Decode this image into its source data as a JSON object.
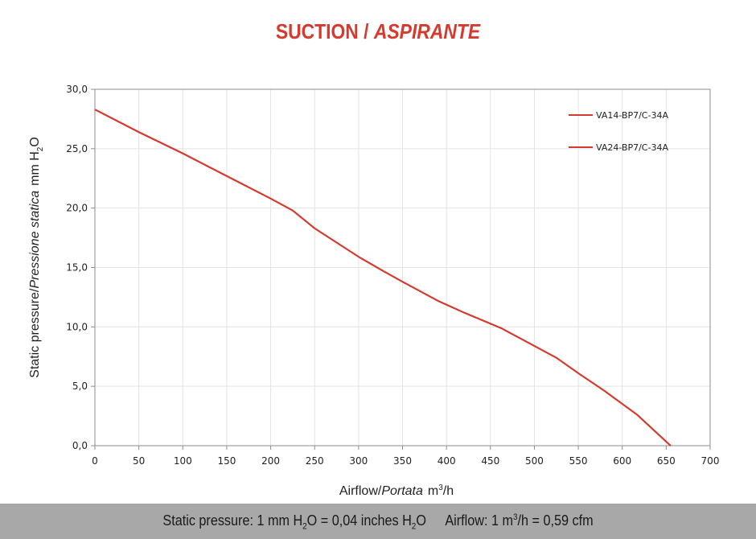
{
  "chart_data": {
    "type": "line",
    "title_part1": "SUCTION / ",
    "title_part2": "ASPIRANTE",
    "xlabel": {
      "part1": "Airflow/",
      "part2": "Portata",
      "unit": "m",
      "unit_sup": "3",
      "unit_end": "/h"
    },
    "ylabel": {
      "part1": "Static pressure/",
      "part2": "Pressione statica",
      "unit": "mm  H",
      "unit_sub": "2",
      "unit_end": "O"
    },
    "xlim": [
      0,
      700
    ],
    "ylim": [
      0,
      30
    ],
    "x_ticks": [
      "0",
      "50",
      "100",
      "150",
      "200",
      "250",
      "300",
      "350",
      "400",
      "450",
      "500",
      "550",
      "600",
      "650",
      "700"
    ],
    "y_ticks": [
      "0,0",
      "5,0",
      "10,0",
      "15,0",
      "20,0",
      "25,0",
      "30,0"
    ],
    "grid": true,
    "legend_position": "top-right",
    "series": [
      {
        "name": "VA14-BP7/C-34A",
        "color": "#d63a2e",
        "x": [
          0,
          50,
          100,
          150,
          200,
          225,
          250,
          300,
          328,
          350,
          390,
          420,
          462,
          500,
          525,
          550,
          580,
          617,
          655
        ],
        "y": [
          28.3,
          26.4,
          24.6,
          22.7,
          20.8,
          19.8,
          18.3,
          15.9,
          14.7,
          13.8,
          12.2,
          11.2,
          9.9,
          8.4,
          7.4,
          6.1,
          4.6,
          2.6,
          0.0
        ]
      },
      {
        "name": "VA24-BP7/C-34A",
        "color": "#d63a2e",
        "x": [
          0,
          50,
          100,
          150,
          200,
          225,
          250,
          300,
          328,
          350,
          390,
          420,
          462,
          500,
          525,
          550,
          580,
          617,
          655
        ],
        "y": [
          28.3,
          26.4,
          24.6,
          22.7,
          20.8,
          19.8,
          18.3,
          15.9,
          14.7,
          13.8,
          12.2,
          11.2,
          9.9,
          8.4,
          7.4,
          6.1,
          4.6,
          2.6,
          0.0
        ]
      }
    ]
  },
  "footer": {
    "p1": "Static pressure: 1 mm H",
    "p1_sub": "2",
    "p2": "O = 0,04 inches H",
    "p2_sub": "2",
    "p3": "O",
    "p4": "Airflow: 1 m",
    "p4_sup": "3",
    "p5": "/h = 0,59 cfm"
  }
}
